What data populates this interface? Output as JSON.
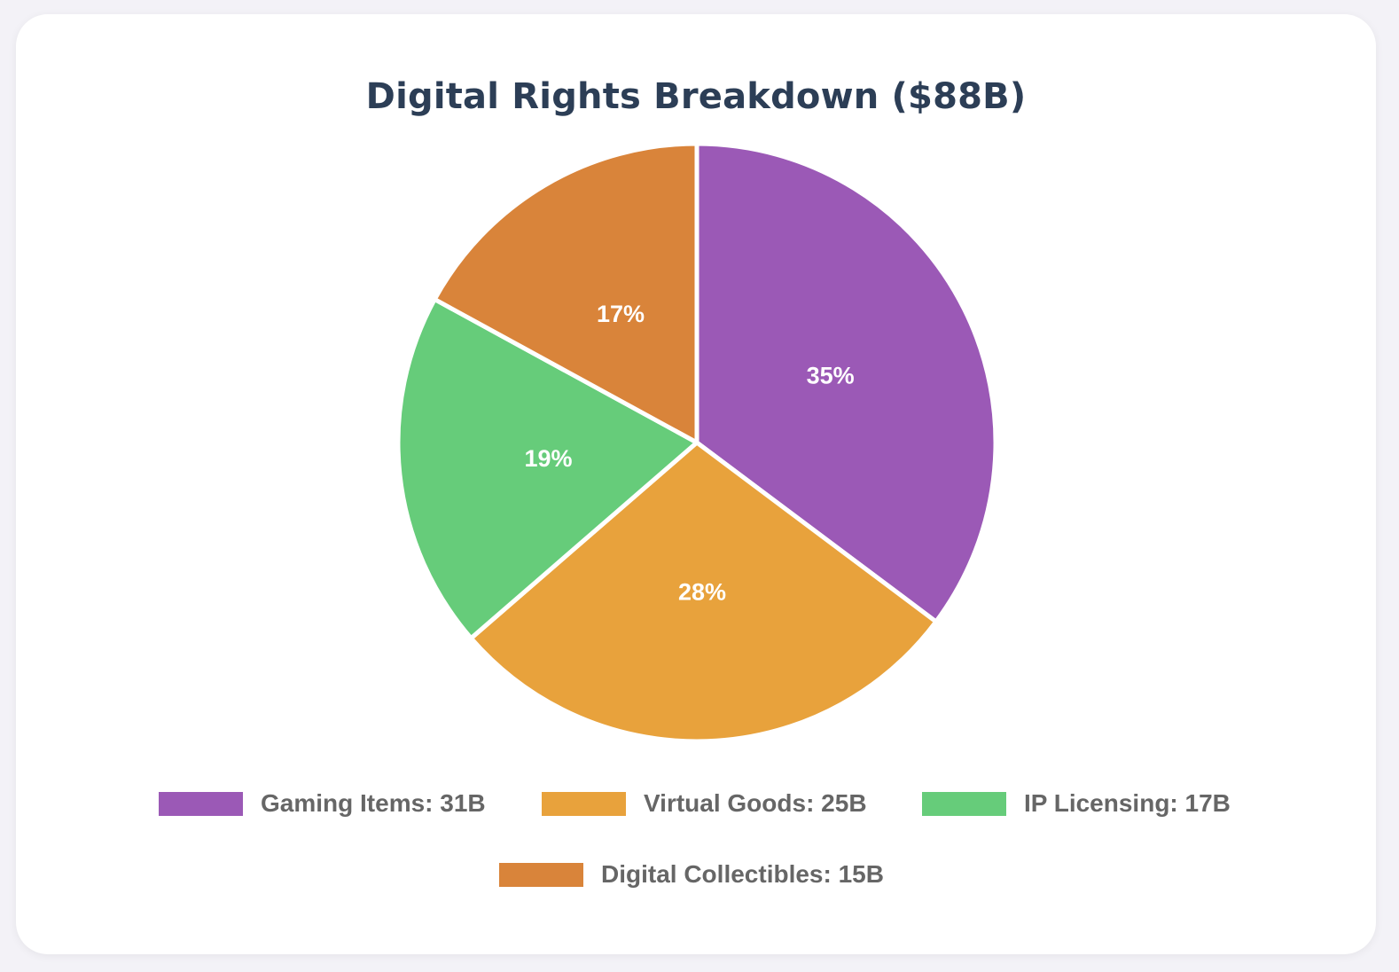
{
  "chart_data": {
    "type": "pie",
    "title": "Digital Rights Breakdown ($88B)",
    "categories": [
      "Gaming Items",
      "Virtual Goods",
      "IP Licensing",
      "Digital Collectibles"
    ],
    "values": [
      31,
      25,
      17,
      15
    ],
    "unit": "B",
    "slice_labels": [
      "35%",
      "28%",
      "19%",
      "17%"
    ],
    "legend_labels": [
      "Gaming Items: 31B",
      "Virtual Goods: 25B",
      "IP Licensing: 17B",
      "Digital Collectibles: 15B"
    ],
    "colors": [
      "#9b59b6",
      "#e8a23c",
      "#66cc7a",
      "#d9843a"
    ],
    "legend_position": "bottom"
  }
}
